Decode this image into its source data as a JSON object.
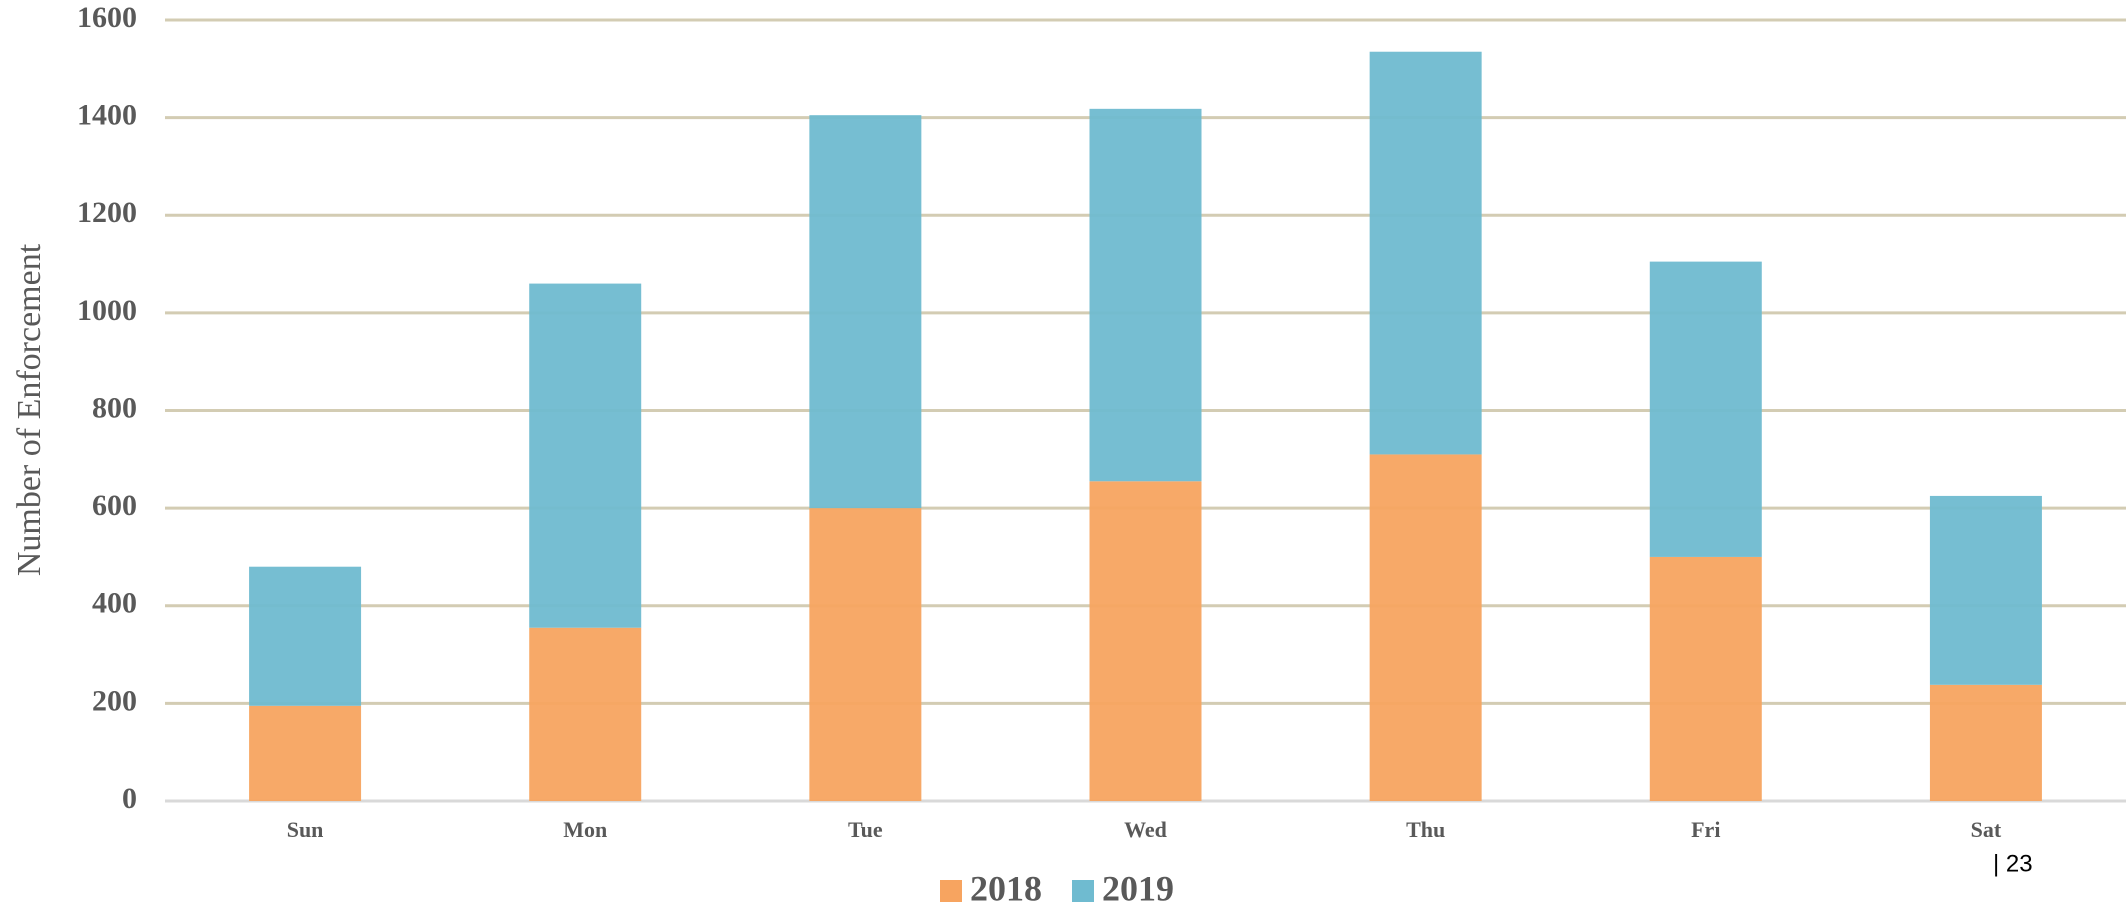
{
  "chart_data": {
    "type": "stacked_bar",
    "y_label": "Number of Enforcement",
    "categories": [
      "Sun",
      "Mon",
      "Tue",
      "Wed",
      "Thu",
      "Fri",
      "Sat"
    ],
    "series": [
      {
        "name": "2018",
        "color": "#f7a460",
        "values": [
          195,
          355,
          600,
          655,
          710,
          500,
          238
        ]
      },
      {
        "name": "2019",
        "color": "#6fbbd0",
        "values": [
          285,
          705,
          805,
          763,
          825,
          605,
          387
        ]
      }
    ],
    "ylim": [
      0,
      1600
    ],
    "yticks": [
      0,
      200,
      400,
      600,
      800,
      1000,
      1200,
      1400,
      1600
    ],
    "grid": true,
    "legend": "bottom",
    "page_number": "| 23"
  }
}
